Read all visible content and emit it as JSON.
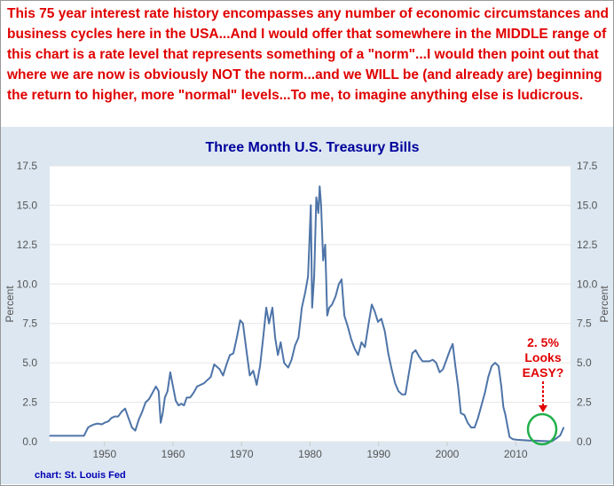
{
  "headline": "This 75 year interest rate history encompasses any number of economic circumstances and business cycles here in the USA...And I would offer that somewhere in the MIDDLE range of this chart is a rate level that represents something of a \"norm\"...I would then point out that where we are now is obviously NOT the norm...and we WILL be (and already are) beginning the return to higher, more \"normal\" levels...To me, to imagine anything else is ludicrous.",
  "colors": {
    "headline": "#e00000",
    "series": "#4e74a8",
    "title": "#00009c",
    "circle": "#22b04b",
    "annotation": "#e00000",
    "panel": "#dce7f1"
  },
  "annotation": {
    "line1": "2. 5%",
    "line2": "Looks",
    "line3": "EASY?"
  },
  "source": "chart: St. Louis Fed",
  "chart_data": {
    "type": "line",
    "title": "Three Month U.S. Treasury Bills",
    "ylabel": "Percent",
    "ylabel_right": "Percent",
    "xlabel": "",
    "xlim": [
      1942,
      2018
    ],
    "ylim": [
      0,
      17.5
    ],
    "yticks": [
      "0.0",
      "2.5",
      "5.0",
      "7.5",
      "10.0",
      "12.5",
      "15.0",
      "17.5"
    ],
    "xticks": [
      "1950",
      "1960",
      "1970",
      "1980",
      "1990",
      "2000",
      "2010"
    ],
    "grid": "horizontal",
    "series": [
      {
        "x": [
          1942.0,
          1943.0,
          1944.0,
          1945.0,
          1946.0,
          1947.0,
          1947.6,
          1948.0,
          1948.5,
          1949.0,
          1949.6,
          1950.0,
          1950.6,
          1951.0,
          1951.5,
          1952.0,
          1952.5,
          1953.0,
          1953.5,
          1954.0,
          1954.5,
          1955.0,
          1955.5,
          1956.0,
          1956.5,
          1957.0,
          1957.5,
          1957.9,
          1958.2,
          1958.5,
          1958.8,
          1959.2,
          1959.6,
          1960.0,
          1960.4,
          1960.8,
          1961.2,
          1961.6,
          1962.0,
          1962.5,
          1963.0,
          1963.5,
          1964.0,
          1964.5,
          1965.0,
          1965.5,
          1966.0,
          1966.8,
          1967.3,
          1967.8,
          1968.3,
          1968.8,
          1969.3,
          1969.8,
          1970.2,
          1970.7,
          1971.2,
          1971.7,
          1972.2,
          1972.7,
          1973.2,
          1973.6,
          1974.0,
          1974.5,
          1974.9,
          1975.3,
          1975.7,
          1976.2,
          1976.8,
          1977.3,
          1977.8,
          1978.3,
          1978.8,
          1979.3,
          1979.7,
          1980.1,
          1980.3,
          1980.6,
          1980.9,
          1981.2,
          1981.4,
          1981.6,
          1981.9,
          1982.2,
          1982.5,
          1982.8,
          1983.2,
          1983.7,
          1984.2,
          1984.6,
          1985.0,
          1985.5,
          1986.0,
          1986.5,
          1987.0,
          1987.5,
          1988.0,
          1988.5,
          1989.0,
          1989.4,
          1989.9,
          1990.4,
          1990.9,
          1991.4,
          1991.9,
          1992.4,
          1992.9,
          1993.4,
          1993.9,
          1994.4,
          1994.9,
          1995.4,
          1995.9,
          1996.4,
          1996.9,
          1997.4,
          1997.9,
          1998.4,
          1998.9,
          1999.4,
          1999.9,
          2000.4,
          2000.8,
          2001.2,
          2001.6,
          2002.0,
          2002.5,
          2003.0,
          2003.5,
          2004.0,
          2004.5,
          2005.0,
          2005.5,
          2006.0,
          2006.5,
          2007.0,
          2007.5,
          2007.9,
          2008.2,
          2008.5,
          2008.8,
          2009.1,
          2009.6,
          2010.2,
          2011.0,
          2012.0,
          2013.0,
          2014.0,
          2014.8,
          2015.3,
          2015.9,
          2016.5,
          2017.0
        ],
        "y": [
          0.37,
          0.37,
          0.37,
          0.37,
          0.37,
          0.37,
          0.9,
          1.0,
          1.1,
          1.15,
          1.1,
          1.2,
          1.3,
          1.5,
          1.6,
          1.6,
          1.9,
          2.1,
          1.5,
          0.9,
          0.7,
          1.4,
          1.9,
          2.5,
          2.7,
          3.1,
          3.5,
          3.2,
          1.2,
          1.8,
          2.8,
          3.2,
          4.4,
          3.5,
          2.6,
          2.3,
          2.4,
          2.3,
          2.8,
          2.8,
          3.1,
          3.5,
          3.6,
          3.7,
          3.9,
          4.1,
          4.9,
          4.6,
          4.2,
          4.9,
          5.5,
          5.6,
          6.6,
          7.7,
          7.5,
          5.8,
          4.2,
          4.5,
          3.6,
          4.8,
          6.8,
          8.5,
          7.5,
          8.5,
          6.6,
          5.5,
          6.3,
          5.0,
          4.7,
          5.2,
          6.1,
          6.6,
          8.5,
          9.5,
          10.5,
          15.0,
          8.5,
          10.5,
          15.5,
          14.5,
          16.2,
          15.0,
          11.5,
          12.5,
          8.0,
          8.5,
          8.7,
          9.2,
          10.0,
          10.3,
          8.0,
          7.3,
          6.5,
          5.9,
          5.5,
          6.3,
          6.0,
          7.4,
          8.7,
          8.3,
          7.6,
          7.8,
          7.0,
          5.6,
          4.6,
          3.7,
          3.2,
          3.0,
          3.0,
          4.3,
          5.6,
          5.8,
          5.4,
          5.1,
          5.1,
          5.1,
          5.2,
          5.0,
          4.4,
          4.6,
          5.2,
          5.8,
          6.2,
          4.8,
          3.5,
          1.8,
          1.7,
          1.2,
          0.9,
          0.9,
          1.5,
          2.3,
          3.1,
          4.1,
          4.8,
          5.0,
          4.8,
          3.5,
          2.2,
          1.7,
          1.0,
          0.3,
          0.15,
          0.12,
          0.1,
          0.07,
          0.06,
          0.04,
          0.03,
          0.02,
          0.2,
          0.4,
          0.9
        ]
      }
    ]
  }
}
